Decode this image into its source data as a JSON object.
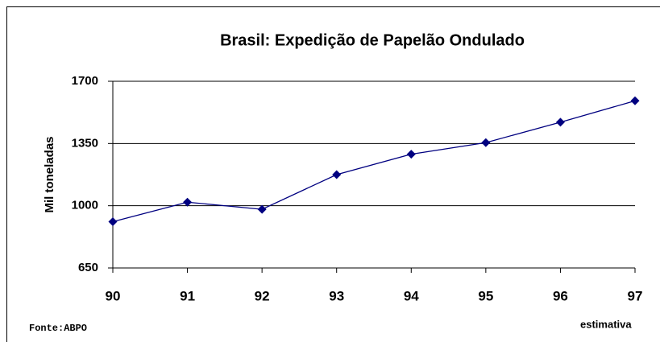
{
  "chart_data": {
    "type": "line",
    "title": "Brasil: Expedição de Papelão Ondulado",
    "y_label": "Mil  toneladas",
    "categories": [
      "90",
      "91",
      "92",
      "93",
      "94",
      "95",
      "96",
      "97"
    ],
    "series": [
      {
        "name": "Expedição",
        "color": "#000080",
        "values": [
          910,
          1020,
          980,
          1175,
          1290,
          1355,
          1470,
          1590
        ]
      }
    ],
    "ylim": [
      650,
      1700
    ],
    "yticks": [
      650,
      1000,
      1350,
      1700
    ],
    "grid": true,
    "annotations": [
      "Fonte:ABPO",
      "estimativa"
    ]
  }
}
